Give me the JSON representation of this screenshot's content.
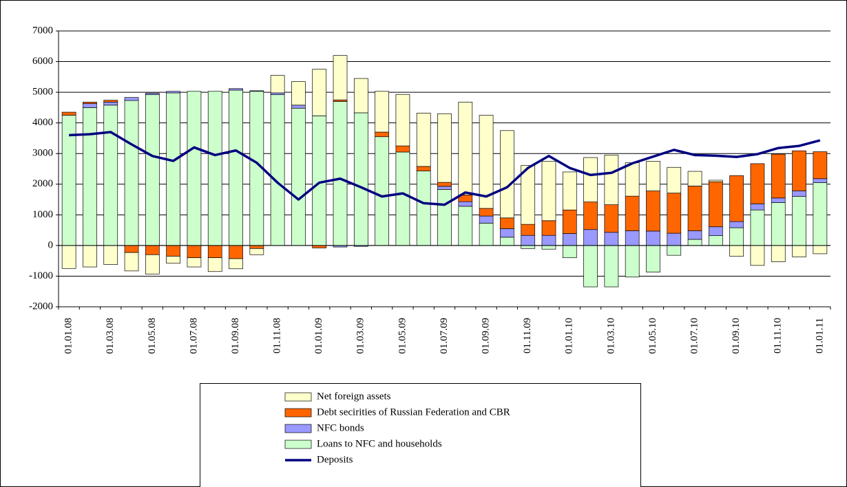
{
  "chart_data": {
    "type": "bar",
    "stacked": true,
    "categories": [
      "01.01.08",
      null,
      "01.03.08",
      null,
      "01.05.08",
      null,
      "01.07.08",
      null,
      "01.09.08",
      null,
      "01.11.08",
      null,
      "01.01.09",
      null,
      "01.03.09",
      null,
      "01.05.09",
      null,
      "01.07.09",
      null,
      "01.09.09",
      null,
      "01.11.09",
      null,
      "01.01.10",
      null,
      "01.03.10",
      null,
      "01.05.10",
      null,
      "01.07.10",
      null,
      "01.09.10",
      null,
      "01.11.10",
      null,
      "01.01.11"
    ],
    "series": [
      {
        "name": "Loans to NFC and households",
        "color": "#ccffcc",
        "values": [
          4250,
          4500,
          4580,
          4730,
          4920,
          4980,
          5030,
          5030,
          5070,
          5030,
          4920,
          4480,
          4230,
          4700,
          4330,
          3550,
          3050,
          2430,
          1830,
          1280,
          730,
          270,
          -100,
          -120,
          -400,
          -1350,
          -1350,
          -1030,
          -870,
          -320,
          200,
          320,
          580,
          1160,
          1400,
          1600,
          2050
        ]
      },
      {
        "name": "NFC bonds",
        "color": "#9999ff",
        "values": [
          0,
          130,
          100,
          100,
          50,
          50,
          0,
          0,
          50,
          20,
          60,
          100,
          0,
          -50,
          -30,
          0,
          0,
          0,
          100,
          150,
          230,
          280,
          330,
          330,
          390,
          520,
          430,
          480,
          470,
          400,
          280,
          290,
          200,
          200,
          150,
          180,
          130
        ]
      },
      {
        "name": "Debt secirities of Russian Federation and CBR",
        "color": "#ff6600",
        "values": [
          100,
          50,
          60,
          -230,
          -300,
          -350,
          -400,
          -400,
          -430,
          -100,
          0,
          0,
          -80,
          50,
          0,
          150,
          200,
          150,
          130,
          220,
          250,
          350,
          360,
          480,
          770,
          900,
          900,
          1130,
          1310,
          1310,
          1460,
          1470,
          1500,
          1310,
          1430,
          1310,
          880
        ]
      },
      {
        "name": "Net foreign assets",
        "color": "#ffffcc",
        "values": [
          -750,
          -700,
          -620,
          -600,
          -630,
          -230,
          -300,
          -450,
          -330,
          -200,
          570,
          770,
          1520,
          1450,
          1120,
          1330,
          1680,
          1740,
          2240,
          3030,
          3040,
          2850,
          1920,
          1940,
          1240,
          1450,
          1620,
          1090,
          970,
          840,
          480,
          50,
          -350,
          -650,
          -530,
          -370,
          -270
        ]
      },
      {
        "name": "Deposits",
        "type": "line",
        "color": "#000080",
        "values": [
          3600,
          3630,
          3700,
          3300,
          2920,
          2760,
          3200,
          2950,
          3100,
          2700,
          2050,
          1500,
          2050,
          2180,
          1900,
          1600,
          1700,
          1380,
          1330,
          1730,
          1600,
          1900,
          2530,
          2920,
          2530,
          2300,
          2370,
          2680,
          2900,
          3120,
          2950,
          2930,
          2890,
          2980,
          3180,
          3250,
          3430
        ]
      }
    ],
    "ylim": [
      -2000,
      7000
    ],
    "yticks": [
      -2000,
      -1000,
      0,
      1000,
      2000,
      3000,
      4000,
      5000,
      6000,
      7000
    ],
    "grid": true,
    "legend": "bottom"
  }
}
